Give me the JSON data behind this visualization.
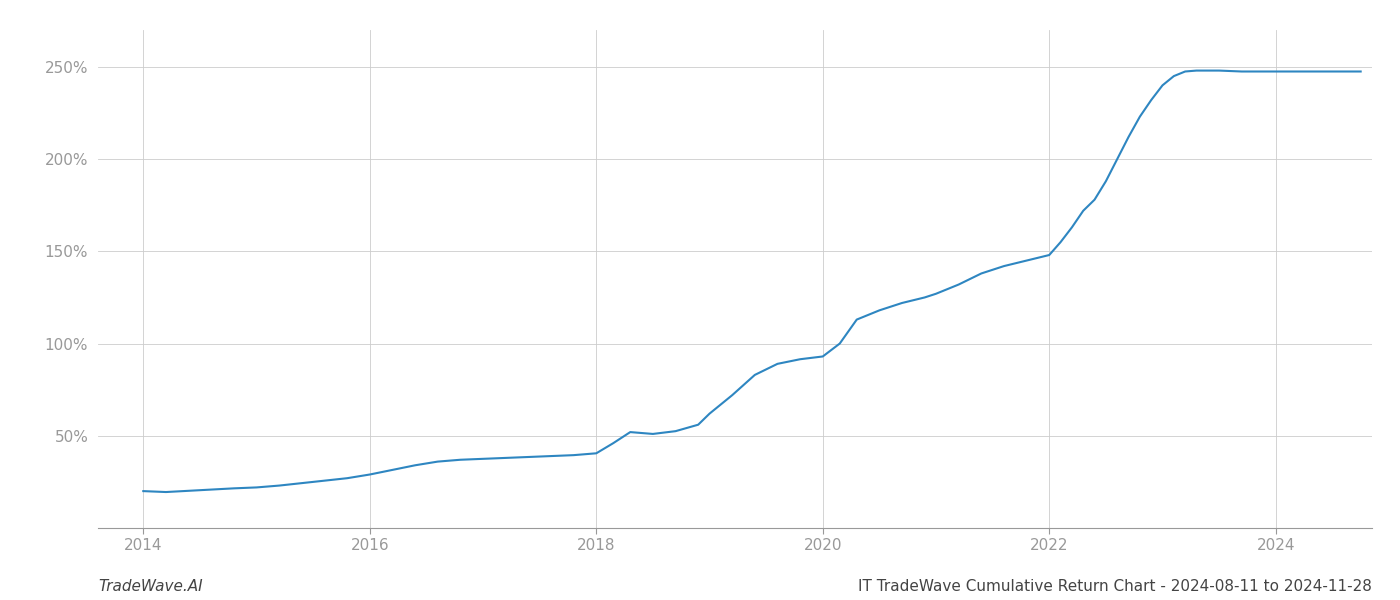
{
  "title": "IT TradeWave Cumulative Return Chart - 2024-08-11 to 2024-11-28",
  "watermark": "TradeWave.AI",
  "line_color": "#2e86c1",
  "background_color": "#ffffff",
  "grid_color": "#cccccc",
  "data_points": [
    [
      2014.0,
      20.0
    ],
    [
      2014.2,
      19.5
    ],
    [
      2014.5,
      20.5
    ],
    [
      2014.8,
      21.5
    ],
    [
      2015.0,
      22.0
    ],
    [
      2015.2,
      23.0
    ],
    [
      2015.5,
      25.0
    ],
    [
      2015.8,
      27.0
    ],
    [
      2016.0,
      29.0
    ],
    [
      2016.2,
      31.5
    ],
    [
      2016.4,
      34.0
    ],
    [
      2016.6,
      36.0
    ],
    [
      2016.8,
      37.0
    ],
    [
      2017.0,
      37.5
    ],
    [
      2017.2,
      38.0
    ],
    [
      2017.4,
      38.5
    ],
    [
      2017.6,
      39.0
    ],
    [
      2017.8,
      39.5
    ],
    [
      2018.0,
      40.5
    ],
    [
      2018.15,
      46.0
    ],
    [
      2018.3,
      52.0
    ],
    [
      2018.5,
      51.0
    ],
    [
      2018.7,
      52.5
    ],
    [
      2018.9,
      56.0
    ],
    [
      2019.0,
      62.0
    ],
    [
      2019.2,
      72.0
    ],
    [
      2019.4,
      83.0
    ],
    [
      2019.6,
      89.0
    ],
    [
      2019.8,
      91.5
    ],
    [
      2020.0,
      93.0
    ],
    [
      2020.15,
      100.0
    ],
    [
      2020.3,
      113.0
    ],
    [
      2020.5,
      118.0
    ],
    [
      2020.7,
      122.0
    ],
    [
      2020.9,
      125.0
    ],
    [
      2021.0,
      127.0
    ],
    [
      2021.2,
      132.0
    ],
    [
      2021.4,
      138.0
    ],
    [
      2021.6,
      142.0
    ],
    [
      2021.8,
      145.0
    ],
    [
      2022.0,
      148.0
    ],
    [
      2022.1,
      155.0
    ],
    [
      2022.2,
      163.0
    ],
    [
      2022.3,
      172.0
    ],
    [
      2022.4,
      178.0
    ],
    [
      2022.5,
      188.0
    ],
    [
      2022.6,
      200.0
    ],
    [
      2022.7,
      212.0
    ],
    [
      2022.8,
      223.0
    ],
    [
      2022.9,
      232.0
    ],
    [
      2023.0,
      240.0
    ],
    [
      2023.1,
      245.0
    ],
    [
      2023.2,
      247.5
    ],
    [
      2023.3,
      248.0
    ],
    [
      2023.5,
      248.0
    ],
    [
      2023.7,
      247.5
    ],
    [
      2023.9,
      247.5
    ],
    [
      2024.0,
      247.5
    ],
    [
      2024.2,
      247.5
    ],
    [
      2024.4,
      247.5
    ],
    [
      2024.6,
      247.5
    ],
    [
      2024.75,
      247.5
    ]
  ],
  "ylim": [
    0,
    270
  ],
  "yticks": [
    50,
    100,
    150,
    200,
    250
  ],
  "xlim": [
    2013.6,
    2024.85
  ],
  "xticks": [
    2014,
    2016,
    2018,
    2020,
    2022,
    2024
  ],
  "line_width": 1.5,
  "title_fontsize": 11,
  "watermark_fontsize": 11,
  "tick_fontsize": 11,
  "tick_color": "#999999",
  "axis_color": "#999999",
  "grid_linewidth": 0.6
}
